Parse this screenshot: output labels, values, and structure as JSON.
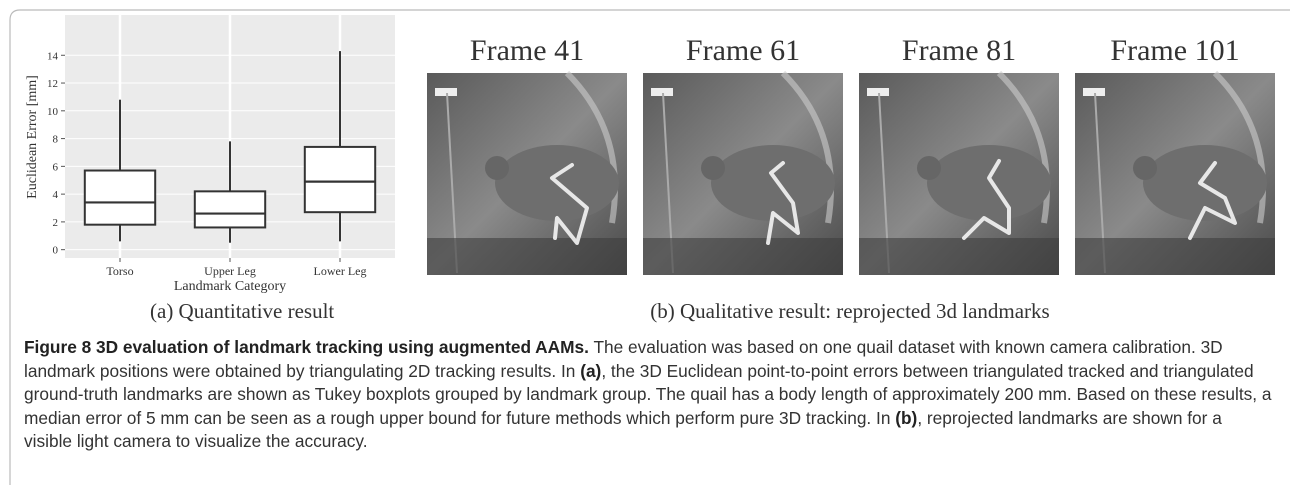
{
  "chart_data": {
    "type": "boxplot",
    "y_label": "Euclidean Error [mm]",
    "x_label": "Landmark Category",
    "categories": [
      "Torso",
      "Upper Leg",
      "Lower Leg"
    ],
    "boxes": [
      {
        "min": 0.6,
        "q1": 1.8,
        "median": 3.4,
        "q3": 5.7,
        "max": 10.8
      },
      {
        "min": 0.5,
        "q1": 1.6,
        "median": 2.6,
        "q3": 4.2,
        "max": 7.8
      },
      {
        "min": 0.6,
        "q1": 2.7,
        "median": 4.9,
        "q3": 7.4,
        "max": 14.3
      }
    ],
    "ylim": [
      -0.6,
      16.9
    ],
    "yticks": [
      0,
      2,
      4,
      6,
      8,
      10,
      12,
      14
    ],
    "grid": true
  },
  "subcaption_a": "(a)  Quantitative result",
  "frames": [
    "Frame 41",
    "Frame 61",
    "Frame 81",
    "Frame 101"
  ],
  "subcaption_b": "(b)  Qualitative result: reprojected 3d landmarks",
  "caption": [
    {
      "text": "Figure 8 3D evaluation of landmark tracking using augmented AAMs.",
      "bold": true
    },
    {
      "text": " The evaluation was based on one quail dataset with known camera calibration. 3D landmark positions were obtained by triangulating 2D tracking results. In ",
      "bold": false
    },
    {
      "text": "(a)",
      "bold": true
    },
    {
      "text": ", the 3D Euclidean point-to-point errors between triangulated tracked and triangulated ground-truth landmarks are shown as Tukey boxplots grouped by landmark group. The quail has a body length of approximately 200 mm. Based on these results, a median error of 5 mm can be seen as a rough upper bound for future methods which perform pure 3D tracking. In ",
      "bold": false
    },
    {
      "text": "(b)",
      "bold": true
    },
    {
      "text": ", reprojected landmarks are shown for a visible light camera to visualize the accuracy.",
      "bold": false
    }
  ]
}
